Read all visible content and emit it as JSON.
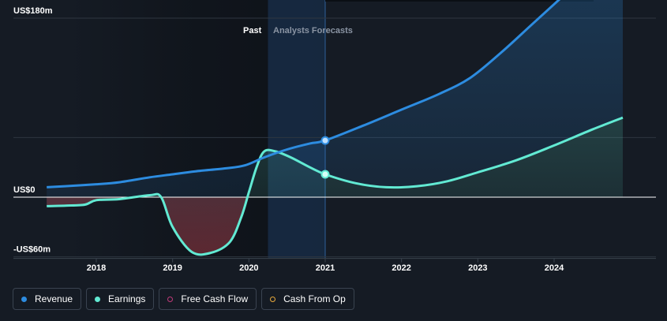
{
  "chart_data": {
    "type": "area",
    "y_axis": {
      "labels": [
        "US$180m",
        "US$0",
        "-US$60m"
      ],
      "ylim": [
        -60,
        180
      ],
      "unit": "US$m"
    },
    "x_axis": {
      "ticks": [
        "2018",
        "2019",
        "2020",
        "2021",
        "2022",
        "2023",
        "2024"
      ],
      "xlim": [
        2017.25,
        2025.2
      ]
    },
    "regions": {
      "past_label": "Past",
      "forecast_label": "Analysts Forecasts",
      "split_year": 2021
    },
    "series": [
      {
        "name": "Revenue",
        "color": "#2d8ce0",
        "points": [
          [
            2017.35,
            10
          ],
          [
            2017.8,
            12
          ],
          [
            2018.0,
            13
          ],
          [
            2018.3,
            15
          ],
          [
            2018.7,
            20
          ],
          [
            2019.0,
            23
          ],
          [
            2019.3,
            26
          ],
          [
            2019.7,
            29
          ],
          [
            2019.95,
            32
          ],
          [
            2020.2,
            40
          ],
          [
            2020.5,
            48
          ],
          [
            2020.8,
            54
          ],
          [
            2021.0,
            57
          ],
          [
            2021.5,
            72
          ],
          [
            2022.0,
            88
          ],
          [
            2022.5,
            104
          ],
          [
            2022.9,
            120
          ],
          [
            2023.3,
            145
          ],
          [
            2023.7,
            173
          ],
          [
            2024.1,
            201
          ],
          [
            2024.5,
            229
          ],
          [
            2024.9,
            255
          ]
        ]
      },
      {
        "name": "Earnings",
        "color": "#62ead3",
        "points": [
          [
            2017.35,
            -9
          ],
          [
            2017.6,
            -8.5
          ],
          [
            2017.85,
            -7.5
          ],
          [
            2018.0,
            -3
          ],
          [
            2018.3,
            -2
          ],
          [
            2018.7,
            2
          ],
          [
            2018.85,
            0
          ],
          [
            2019.0,
            -30
          ],
          [
            2019.25,
            -55
          ],
          [
            2019.5,
            -56
          ],
          [
            2019.75,
            -45
          ],
          [
            2019.9,
            -20
          ],
          [
            2020.0,
            5
          ],
          [
            2020.1,
            30
          ],
          [
            2020.2,
            46
          ],
          [
            2020.35,
            46
          ],
          [
            2020.55,
            40
          ],
          [
            2020.8,
            30
          ],
          [
            2021.0,
            23
          ],
          [
            2021.4,
            14
          ],
          [
            2021.8,
            10
          ],
          [
            2022.2,
            11
          ],
          [
            2022.6,
            16
          ],
          [
            2023.0,
            25
          ],
          [
            2023.5,
            37
          ],
          [
            2024.0,
            52
          ],
          [
            2024.5,
            68
          ],
          [
            2024.9,
            80
          ]
        ]
      }
    ],
    "legend": [
      "Revenue",
      "Earnings",
      "Free Cash Flow",
      "Cash From Op"
    ],
    "legend_colors": [
      "#2d8ce0",
      "#62ead3",
      "#c13b7a",
      "#e7a93c"
    ]
  }
}
